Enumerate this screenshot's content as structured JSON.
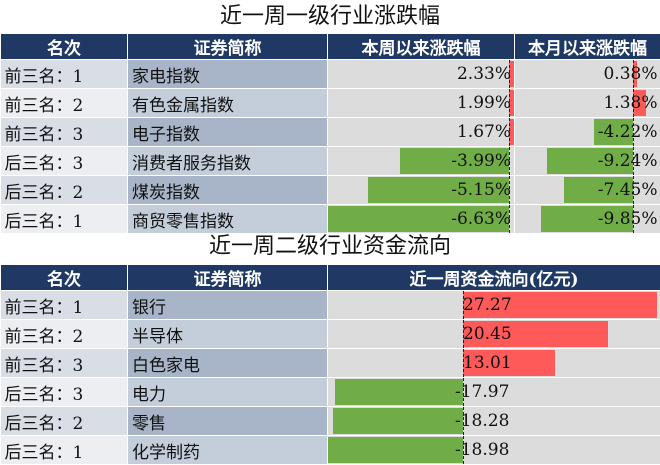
{
  "table1": {
    "title": "近一周一级行业涨跌幅",
    "headers": [
      "名次",
      "证券简称",
      "本周以来涨跌幅",
      "本月以来涨跌幅"
    ],
    "rows": [
      {
        "rank": "前三名：1",
        "name": "家电指数",
        "week": "2.33%",
        "month": "0.38%"
      },
      {
        "rank": "前三名：2",
        "name": "有色金属指数",
        "week": "1.99%",
        "month": "1.38%"
      },
      {
        "rank": "前三名：3",
        "name": "电子指数",
        "week": "1.67%",
        "month": "-4.22%"
      },
      {
        "rank": "后三名：3",
        "name": "消费者服务指数",
        "week": "-3.99%",
        "month": "-9.24%"
      },
      {
        "rank": "后三名：2",
        "name": "煤炭指数",
        "week": "-5.15%",
        "month": "-7.45%"
      },
      {
        "rank": "后三名：1",
        "name": "商贸零售指数",
        "week": "-6.63%",
        "month": "-9.85%"
      }
    ]
  },
  "table2": {
    "title": "近一周二级行业资金流向",
    "headers": [
      "名次",
      "证券简称",
      "近一周资金流向(亿元)"
    ],
    "rows": [
      {
        "rank": "前三名：1",
        "name": "银行",
        "flow": "27.27"
      },
      {
        "rank": "前三名：2",
        "name": "半导体",
        "flow": "20.45"
      },
      {
        "rank": "前三名：3",
        "name": "白色家电",
        "flow": "13.01"
      },
      {
        "rank": "后三名：3",
        "name": "电力",
        "flow": "-17.97"
      },
      {
        "rank": "后三名：2",
        "name": "零售",
        "flow": "-18.28"
      },
      {
        "rank": "后三名：1",
        "name": "化学制药",
        "flow": "-18.98"
      }
    ]
  },
  "colors": {
    "header_bg": "#1f3864",
    "positive_bar": "#ff5a5a",
    "negative_bar": "#70ad47"
  }
}
